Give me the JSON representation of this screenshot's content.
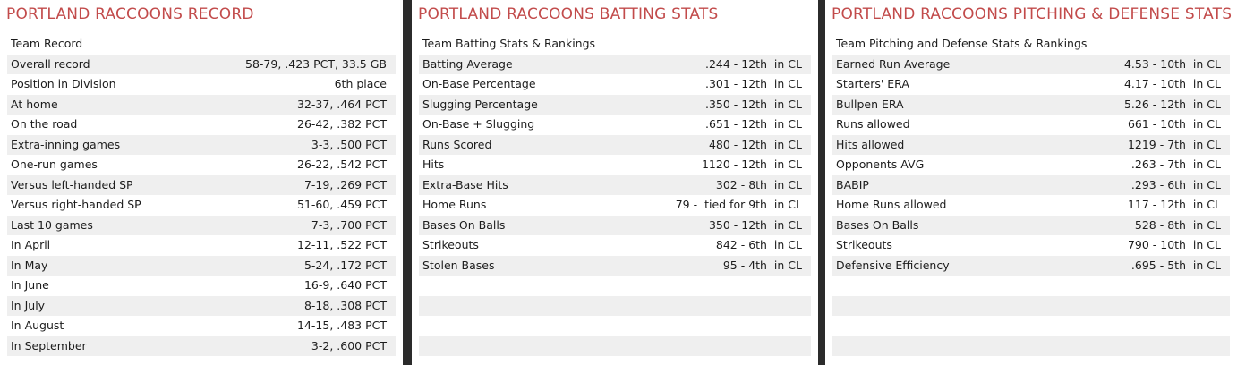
{
  "record": {
    "title": "PORTLAND RACCOONS RECORD",
    "header": "Team Record",
    "rows": [
      {
        "label": "Overall record",
        "value": "58-79, .423 PCT, 33.5 GB"
      },
      {
        "label": "Position in Division",
        "value": "6th place"
      },
      {
        "label": "At home",
        "value": "32-37, .464 PCT"
      },
      {
        "label": "On the road",
        "value": "26-42, .382 PCT"
      },
      {
        "label": "Extra-inning games",
        "value": "3-3, .500 PCT"
      },
      {
        "label": "One-run games",
        "value": "26-22, .542 PCT"
      },
      {
        "label": "Versus left-handed SP",
        "value": "7-19, .269 PCT"
      },
      {
        "label": "Versus right-handed SP",
        "value": "51-60, .459 PCT"
      },
      {
        "label": "Last 10 games",
        "value": "7-3, .700 PCT"
      },
      {
        "label": "In April",
        "value": "12-11, .522 PCT"
      },
      {
        "label": "In May",
        "value": "5-24, .172 PCT"
      },
      {
        "label": "In June",
        "value": "16-9, .640 PCT"
      },
      {
        "label": "In July",
        "value": "8-18, .308 PCT"
      },
      {
        "label": "In August",
        "value": "14-15, .483 PCT"
      },
      {
        "label": "In September",
        "value": "3-2, .600 PCT"
      }
    ]
  },
  "batting": {
    "title": "PORTLAND RACCOONS BATTING STATS",
    "header": "Team Batting Stats & Rankings",
    "rows": [
      {
        "label": "Batting Average",
        "value": ".244 - 12th  in CL"
      },
      {
        "label": "On-Base Percentage",
        "value": ".301 - 12th  in CL"
      },
      {
        "label": "Slugging Percentage",
        "value": ".350 - 12th  in CL"
      },
      {
        "label": "On-Base + Slugging",
        "value": ".651 - 12th  in CL"
      },
      {
        "label": "Runs Scored",
        "value": "480 - 12th  in CL"
      },
      {
        "label": "Hits",
        "value": "1120 - 12th  in CL"
      },
      {
        "label": "Extra-Base Hits",
        "value": "302 - 8th  in CL"
      },
      {
        "label": "Home Runs",
        "value": "79 -  tied for 9th  in CL"
      },
      {
        "label": "Bases On Balls",
        "value": "350 - 12th  in CL"
      },
      {
        "label": "Strikeouts",
        "value": "842 - 6th  in CL"
      },
      {
        "label": "Stolen Bases",
        "value": "95 - 4th  in CL"
      },
      {
        "label": "",
        "value": ""
      },
      {
        "label": "",
        "value": ""
      },
      {
        "label": "",
        "value": ""
      },
      {
        "label": "",
        "value": ""
      }
    ]
  },
  "pitching": {
    "title": "PORTLAND RACCOONS PITCHING & DEFENSE STATS",
    "header": "Team Pitching and Defense Stats & Rankings",
    "rows": [
      {
        "label": "Earned Run Average",
        "value": "4.53 - 10th  in CL"
      },
      {
        "label": "Starters' ERA",
        "value": "4.17 - 10th  in CL"
      },
      {
        "label": "Bullpen ERA",
        "value": "5.26 - 12th  in CL"
      },
      {
        "label": "Runs allowed",
        "value": "661 - 10th  in CL"
      },
      {
        "label": "Hits allowed",
        "value": "1219 - 7th  in CL"
      },
      {
        "label": "Opponents AVG",
        "value": ".263 - 7th  in CL"
      },
      {
        "label": "BABIP",
        "value": ".293 - 6th  in CL"
      },
      {
        "label": "Home Runs allowed",
        "value": "117 - 12th  in CL"
      },
      {
        "label": "Bases On Balls",
        "value": "528 - 8th  in CL"
      },
      {
        "label": "Strikeouts",
        "value": "790 - 10th  in CL"
      },
      {
        "label": "Defensive Efficiency",
        "value": ".695 - 5th  in CL"
      },
      {
        "label": "",
        "value": ""
      },
      {
        "label": "",
        "value": ""
      },
      {
        "label": "",
        "value": ""
      },
      {
        "label": "",
        "value": ""
      }
    ]
  }
}
